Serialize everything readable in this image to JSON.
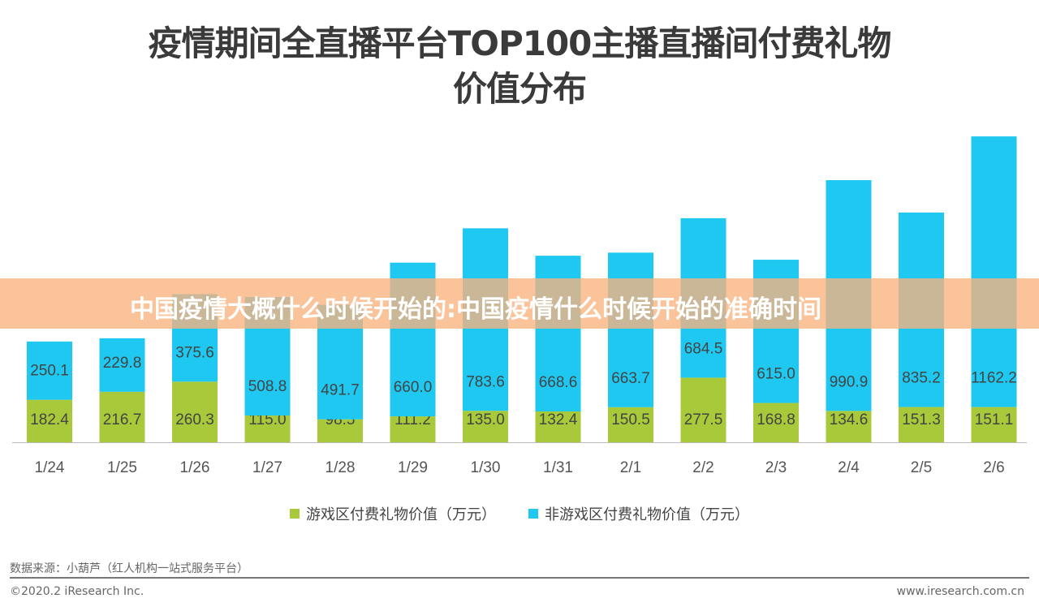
{
  "chart_data": {
    "type": "bar",
    "stacked": true,
    "title": [
      "疫情期间全直播平台TOP100主播直播间付费礼物",
      "价值分布"
    ],
    "categories": [
      "1/24",
      "1/25",
      "1/26",
      "1/27",
      "1/28",
      "1/29",
      "1/30",
      "1/31",
      "2/1",
      "2/2",
      "2/3",
      "2/4",
      "2/5",
      "2/6"
    ],
    "series": [
      {
        "name": "游戏区付费礼物价值（万元）",
        "color": "#a8c93a",
        "values": [
          182.4,
          216.7,
          260.3,
          115.0,
          98.5,
          111.2,
          135.0,
          132.4,
          150.5,
          277.5,
          168.8,
          134.6,
          151.3,
          151.1
        ]
      },
      {
        "name": "非游戏区付费礼物价值（万元）",
        "color": "#1ec8f0",
        "values": [
          250.1,
          229.8,
          375.6,
          508.8,
          491.7,
          660.0,
          783.6,
          668.6,
          663.7,
          684.5,
          615.0,
          990.9,
          835.2,
          1162.2
        ]
      }
    ],
    "legend_position": "bottom",
    "grid": false
  },
  "overlay_banner": "中国疫情大概什么时候开始的:中国疫情什么时候开始的准确时间",
  "footer": {
    "source": "数据来源：小葫芦（红人机构一站式服务平台）",
    "copyright": "©2020.2 iResearch Inc.",
    "website": "www.iresearch.com.cn"
  }
}
